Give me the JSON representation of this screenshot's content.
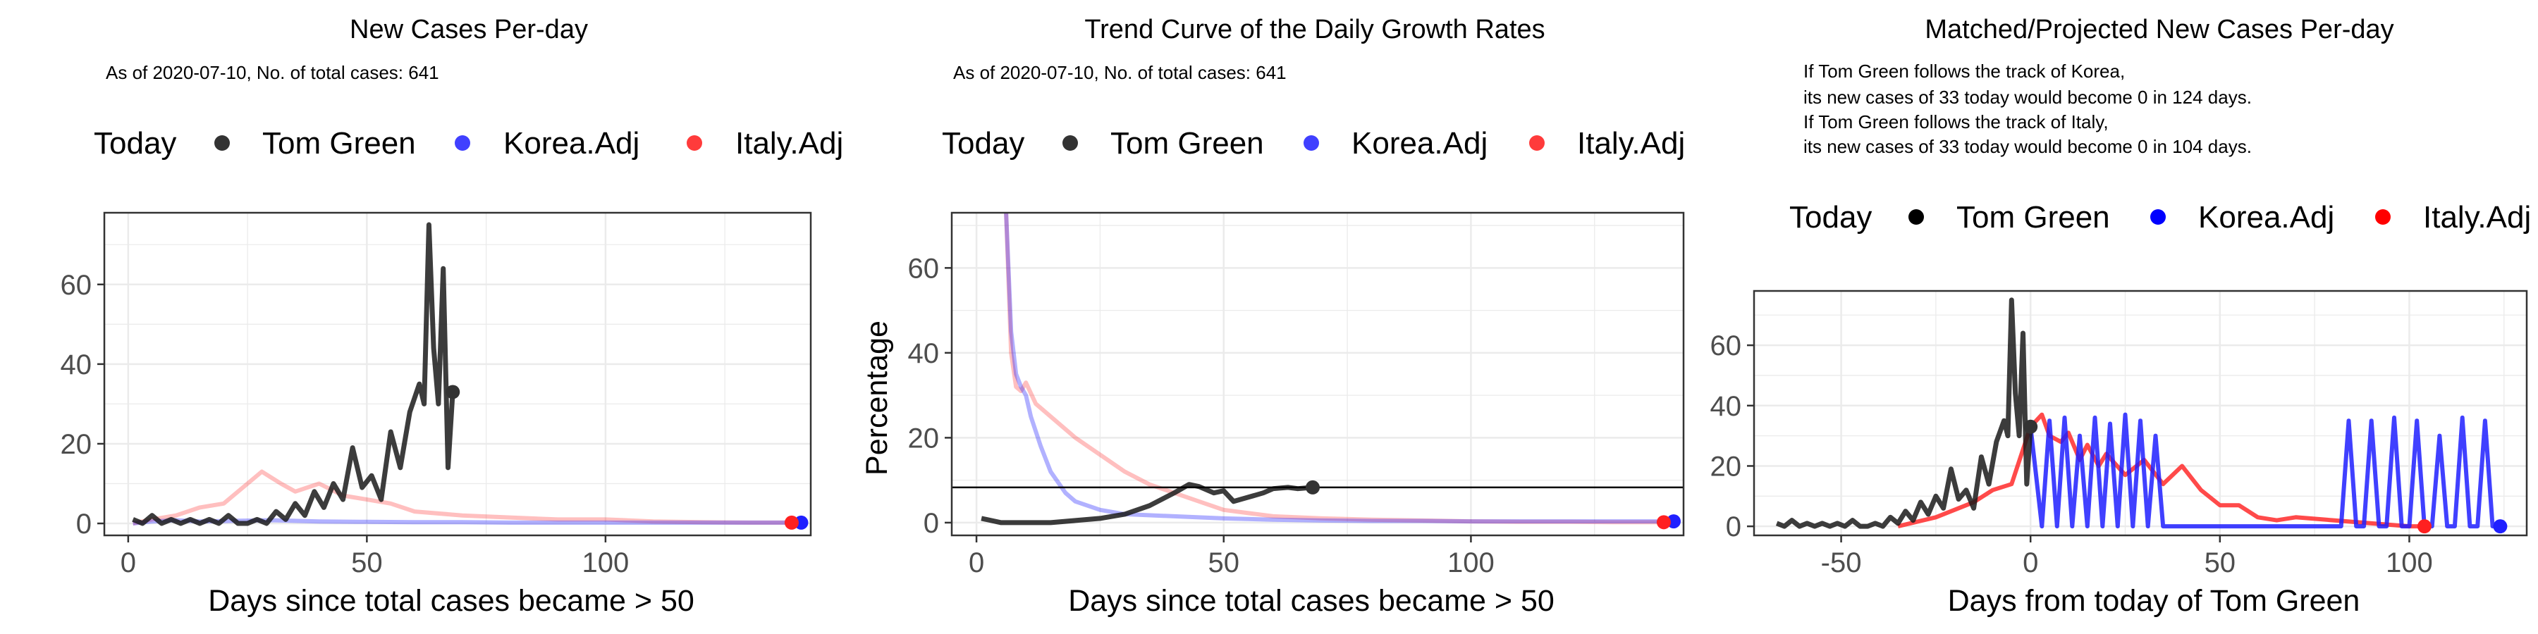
{
  "colors": {
    "tom_green": "#1a1a1a",
    "korea": "#1f1fff",
    "italy": "#ff2a2a",
    "grid": "#ebebeb",
    "hline": "#000000"
  },
  "legend_labels": {
    "title": "Today",
    "tom_green": "Tom Green",
    "korea": "Korea.Adj",
    "italy": "Italy.Adj"
  },
  "panels": {
    "p1": {
      "title": "New Cases Per-day",
      "subtitle": "As of 2020-07-10, No. of total cases: 641",
      "xlabel": "Days since total cases became > 50"
    },
    "p2": {
      "title": "Trend Curve of the Daily Growth Rates",
      "subtitle": "As of 2020-07-10, No. of total cases: 641",
      "xlabel": "Days since total cases became > 50",
      "ylabel": "Percentage"
    },
    "p3": {
      "title": "Matched/Projected New Cases Per-day",
      "subtitle_lines": [
        "If Tom Green follows the track of Korea,",
        "its new cases of 33 today would become 0 in 124 days.",
        "If Tom Green follows the track of Italy,",
        "its new cases of 33 today would become 0 in 104 days."
      ],
      "xlabel": "Days from today of Tom Green"
    }
  },
  "chart_data": [
    {
      "type": "line",
      "title": "New Cases Per-day",
      "subtitle": "As of 2020-07-10, No. of total cases: 641",
      "xlabel": "Days since total cases became > 50",
      "ylabel": "",
      "xlim": [
        -5,
        143
      ],
      "ylim": [
        -3,
        78
      ],
      "x_ticks": [
        0,
        50,
        100
      ],
      "y_ticks": [
        0,
        20,
        40,
        60
      ],
      "grid": true,
      "legend_position": "top",
      "series": [
        {
          "name": "Tom Green",
          "x": [
            1,
            3,
            5,
            7,
            9,
            11,
            13,
            15,
            17,
            19,
            21,
            23,
            25,
            27,
            29,
            31,
            33,
            35,
            37,
            39,
            41,
            43,
            45,
            47,
            49,
            51,
            53,
            55,
            57,
            59,
            61,
            62,
            63,
            64,
            65,
            66,
            67,
            68
          ],
          "y": [
            1,
            0,
            2,
            0,
            1,
            0,
            1,
            0,
            1,
            0,
            2,
            0,
            0,
            1,
            0,
            3,
            1,
            5,
            2,
            8,
            4,
            10,
            6,
            19,
            9,
            12,
            6,
            23,
            14,
            28,
            35,
            30,
            75,
            44,
            30,
            64,
            14,
            33
          ]
        },
        {
          "name": "Korea.Adj",
          "x": [
            1,
            5,
            10,
            15,
            20,
            30,
            40,
            50,
            60,
            70,
            80,
            90,
            100,
            110,
            120,
            130,
            141
          ],
          "y": [
            0,
            0.5,
            0.8,
            0.5,
            0.6,
            0.8,
            0.5,
            0.4,
            0.3,
            0.3,
            0.2,
            0.2,
            0.2,
            0.2,
            0.2,
            0.2,
            0.2
          ]
        },
        {
          "name": "Italy.Adj",
          "x": [
            1,
            5,
            10,
            15,
            20,
            25,
            28,
            32,
            35,
            40,
            45,
            50,
            55,
            60,
            70,
            80,
            90,
            100,
            110,
            120,
            130,
            139
          ],
          "y": [
            0,
            1,
            2,
            4,
            5,
            10,
            13,
            10,
            8,
            10,
            7,
            6,
            5,
            3,
            2,
            1.5,
            1,
            1,
            0.5,
            0.3,
            0.2,
            0.2
          ]
        }
      ],
      "today_points": [
        {
          "series": "Tom Green",
          "x": 68,
          "y": 33
        },
        {
          "series": "Korea.Adj",
          "x": 141,
          "y": 0.2
        },
        {
          "series": "Italy.Adj",
          "x": 139,
          "y": 0.2
        }
      ]
    },
    {
      "type": "line",
      "title": "Trend Curve of the Daily Growth Rates",
      "subtitle": "As of 2020-07-10, No. of total cases: 641",
      "xlabel": "Days since total cases became > 50",
      "ylabel": "Percentage",
      "xlim": [
        -5,
        143
      ],
      "ylim": [
        -3,
        73
      ],
      "x_ticks": [
        0,
        50,
        100
      ],
      "y_ticks": [
        0,
        20,
        40,
        60
      ],
      "grid": true,
      "legend_position": "top",
      "hline": 8.3,
      "series": [
        {
          "name": "Tom Green",
          "x": [
            1,
            5,
            10,
            15,
            20,
            25,
            30,
            35,
            40,
            43,
            45,
            48,
            50,
            52,
            55,
            58,
            60,
            63,
            65,
            68
          ],
          "y": [
            1,
            0,
            0,
            0,
            0.5,
            1,
            2,
            4,
            7,
            9,
            8.5,
            7,
            7.5,
            5,
            6,
            7,
            8,
            8.3,
            8,
            8.3
          ]
        },
        {
          "name": "Korea.Adj",
          "x": [
            6,
            7,
            8,
            9,
            10,
            11,
            13,
            15,
            18,
            20,
            25,
            30,
            40,
            50,
            60,
            70,
            80,
            90,
            100,
            110,
            120,
            130,
            141
          ],
          "y": [
            73,
            45,
            35,
            32,
            30,
            25,
            18,
            12,
            7,
            5,
            3,
            2,
            1.5,
            1,
            0.7,
            0.5,
            0.4,
            0.4,
            0.3,
            0.3,
            0.3,
            0.3,
            0.3
          ]
        },
        {
          "name": "Italy.Adj",
          "x": [
            6,
            7,
            8,
            9,
            10,
            12,
            15,
            20,
            25,
            30,
            35,
            40,
            45,
            50,
            60,
            70,
            80,
            90,
            100,
            110,
            120,
            130,
            139
          ],
          "y": [
            73,
            40,
            32,
            31,
            33,
            28,
            25,
            20,
            16,
            12,
            9,
            7,
            5,
            3,
            1.5,
            1,
            0.7,
            0.5,
            0.3,
            0.2,
            0.2,
            0.1,
            0.1
          ]
        }
      ],
      "today_points": [
        {
          "series": "Tom Green",
          "x": 68,
          "y": 8.3
        },
        {
          "series": "Korea.Adj",
          "x": 141,
          "y": 0.3
        },
        {
          "series": "Italy.Adj",
          "x": 139,
          "y": 0.1
        }
      ]
    },
    {
      "type": "line",
      "title": "Matched/Projected New Cases Per-day",
      "subtitle": "If Tom Green follows the track of Korea, its new cases of 33 today would become 0 in 124 days. If Tom Green follows the track of Italy, its new cases of 33 today would become 0 in 104 days.",
      "xlabel": "Days from today of Tom Green",
      "ylabel": "",
      "xlim": [
        -73,
        131
      ],
      "ylim": [
        -3,
        78
      ],
      "x_ticks": [
        -50,
        0,
        50,
        100
      ],
      "y_ticks": [
        0,
        20,
        40,
        60
      ],
      "grid": true,
      "legend_position": "top",
      "series": [
        {
          "name": "Tom Green",
          "x": [
            -67,
            -65,
            -63,
            -61,
            -59,
            -57,
            -55,
            -53,
            -51,
            -49,
            -47,
            -45,
            -43,
            -41,
            -39,
            -37,
            -35,
            -33,
            -31,
            -29,
            -27,
            -25,
            -23,
            -21,
            -19,
            -17,
            -15,
            -13,
            -11,
            -9,
            -7,
            -6,
            -5,
            -4,
            -3,
            -2,
            -1,
            0
          ],
          "y": [
            1,
            0,
            2,
            0,
            1,
            0,
            1,
            0,
            1,
            0,
            2,
            0,
            0,
            1,
            0,
            3,
            1,
            5,
            2,
            8,
            4,
            10,
            6,
            19,
            9,
            12,
            6,
            23,
            14,
            28,
            35,
            30,
            75,
            44,
            30,
            64,
            14,
            33
          ]
        },
        {
          "name": "Korea.Adj",
          "x": [
            0,
            3,
            5,
            7,
            9,
            11,
            13,
            15,
            17,
            19,
            21,
            23,
            25,
            27,
            29,
            31,
            33,
            35,
            45,
            50,
            55,
            60,
            65,
            70,
            75,
            80,
            82,
            84,
            86,
            88,
            90,
            92,
            94,
            96,
            98,
            100,
            102,
            104,
            106,
            108,
            110,
            112,
            114,
            116,
            118,
            120,
            122,
            124
          ],
          "y": [
            33,
            0,
            35,
            0,
            36,
            0,
            30,
            0,
            36,
            0,
            34,
            0,
            37,
            0,
            35,
            0,
            30,
            0,
            0,
            0,
            0,
            0,
            0,
            0,
            0,
            0,
            0,
            35,
            0,
            0,
            35,
            0,
            0,
            36,
            0,
            0,
            35,
            0,
            0,
            30,
            0,
            0,
            36,
            0,
            0,
            35,
            0,
            0
          ]
        },
        {
          "name": "Italy.Adj",
          "x": [
            -35,
            -25,
            -15,
            -10,
            -5,
            0,
            3,
            5,
            8,
            10,
            13,
            15,
            18,
            20,
            25,
            30,
            35,
            40,
            45,
            50,
            55,
            60,
            65,
            70,
            80,
            90,
            100,
            104
          ],
          "y": [
            0,
            3,
            8,
            12,
            14,
            33,
            37,
            30,
            28,
            31,
            22,
            27,
            20,
            24,
            17,
            22,
            14,
            20,
            12,
            7,
            7,
            3,
            2,
            3,
            2,
            1,
            0,
            0
          ]
        }
      ],
      "today_points": [
        {
          "series": "Tom Green",
          "x": 0,
          "y": 33
        },
        {
          "series": "Korea.Adj",
          "x": 124,
          "y": 0
        },
        {
          "series": "Italy.Adj",
          "x": 104,
          "y": 0
        }
      ]
    }
  ]
}
